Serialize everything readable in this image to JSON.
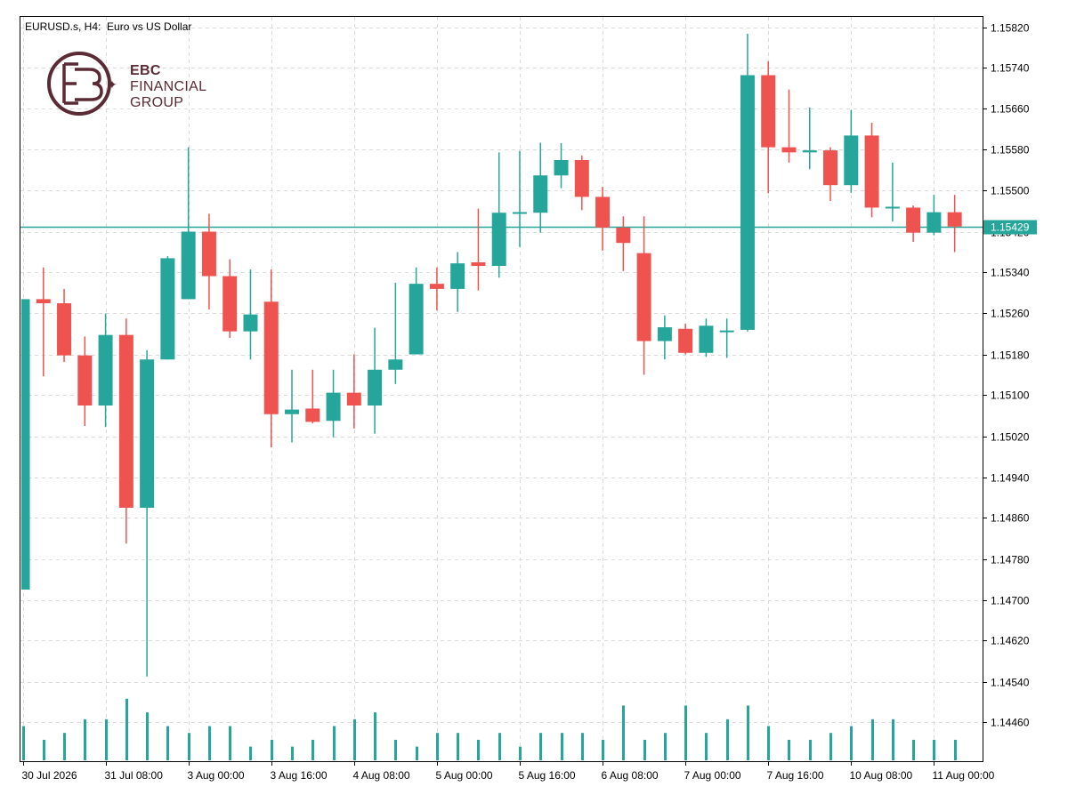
{
  "header": {
    "symbol_line": "EURUSD.s, H4:  Euro vs US Dollar"
  },
  "logo": {
    "line1": "EBC",
    "line2": "FINANCIAL",
    "line3": "GROUP",
    "color": "#5a2a35"
  },
  "colors": {
    "bull": "#26a69a",
    "bear": "#ef5350",
    "grid": "#d9d9d9",
    "axis": "#000000",
    "price_line": "#26a69a"
  },
  "chart_data": {
    "type": "candlestick",
    "title": "EURUSD.s, H4:  Euro vs US Dollar",
    "timeframe": "H4",
    "ylim": [
      1.144,
      1.1584
    ],
    "grid": true,
    "current_price": "1.15429",
    "y_ticks": [
      "1.15820",
      "1.15740",
      "1.15660",
      "1.15580",
      "1.15500",
      "1.15420",
      "1.15340",
      "1.15260",
      "1.15180",
      "1.15100",
      "1.15020",
      "1.14940",
      "1.14860",
      "1.14780",
      "1.14700",
      "1.14620",
      "1.14540",
      "1.14460"
    ],
    "x_ticks": [
      {
        "index": 0,
        "label": "30 Jul 2026"
      },
      {
        "index": 4,
        "label": "31 Jul 08:00"
      },
      {
        "index": 8,
        "label": "3 Aug 00:00"
      },
      {
        "index": 12,
        "label": "3 Aug 16:00"
      },
      {
        "index": 16,
        "label": "4 Aug 08:00"
      },
      {
        "index": 20,
        "label": "5 Aug 00:00"
      },
      {
        "index": 24,
        "label": "5 Aug 16:00"
      },
      {
        "index": 28,
        "label": "6 Aug 08:00"
      },
      {
        "index": 32,
        "label": "7 Aug 00:00"
      },
      {
        "index": 36,
        "label": "7 Aug 16:00"
      },
      {
        "index": 40,
        "label": "10 Aug 08:00"
      },
      {
        "index": 44,
        "label": "11 Aug 00:00"
      }
    ],
    "candles": [
      {
        "o": 1.1472,
        "h": 1.15288,
        "l": 1.1472,
        "c": 1.15288
      },
      {
        "o": 1.15288,
        "h": 1.1535,
        "l": 1.15137,
        "c": 1.1528
      },
      {
        "o": 1.1528,
        "h": 1.15308,
        "l": 1.15165,
        "c": 1.15178
      },
      {
        "o": 1.15178,
        "h": 1.15215,
        "l": 1.1504,
        "c": 1.1508
      },
      {
        "o": 1.1508,
        "h": 1.1526,
        "l": 1.15038,
        "c": 1.15218
      },
      {
        "o": 1.15218,
        "h": 1.1525,
        "l": 1.1481,
        "c": 1.1488
      },
      {
        "o": 1.1488,
        "h": 1.15188,
        "l": 1.1455,
        "c": 1.1517
      },
      {
        "o": 1.1517,
        "h": 1.15372,
        "l": 1.1517,
        "c": 1.15368
      },
      {
        "o": 1.15288,
        "h": 1.15585,
        "l": 1.15288,
        "c": 1.1542
      },
      {
        "o": 1.1542,
        "h": 1.15455,
        "l": 1.15268,
        "c": 1.15333
      },
      {
        "o": 1.15333,
        "h": 1.15366,
        "l": 1.15212,
        "c": 1.15225
      },
      {
        "o": 1.15225,
        "h": 1.15346,
        "l": 1.1517,
        "c": 1.15258
      },
      {
        "o": 1.15283,
        "h": 1.15346,
        "l": 1.14998,
        "c": 1.15063
      },
      {
        "o": 1.15063,
        "h": 1.1515,
        "l": 1.15008,
        "c": 1.15072
      },
      {
        "o": 1.15074,
        "h": 1.1515,
        "l": 1.15045,
        "c": 1.15048
      },
      {
        "o": 1.1505,
        "h": 1.1515,
        "l": 1.15018,
        "c": 1.15105
      },
      {
        "o": 1.15105,
        "h": 1.1518,
        "l": 1.15035,
        "c": 1.1508
      },
      {
        "o": 1.1508,
        "h": 1.15232,
        "l": 1.15025,
        "c": 1.1515
      },
      {
        "o": 1.1515,
        "h": 1.1532,
        "l": 1.15122,
        "c": 1.1517
      },
      {
        "o": 1.1518,
        "h": 1.1535,
        "l": 1.1518,
        "c": 1.15318
      },
      {
        "o": 1.15318,
        "h": 1.1535,
        "l": 1.15266,
        "c": 1.15308
      },
      {
        "o": 1.15308,
        "h": 1.1538,
        "l": 1.15263,
        "c": 1.15358
      },
      {
        "o": 1.1536,
        "h": 1.15465,
        "l": 1.15305,
        "c": 1.15353
      },
      {
        "o": 1.15353,
        "h": 1.15575,
        "l": 1.1533,
        "c": 1.15457
      },
      {
        "o": 1.15455,
        "h": 1.15578,
        "l": 1.1539,
        "c": 1.15458
      },
      {
        "o": 1.15457,
        "h": 1.15594,
        "l": 1.15418,
        "c": 1.1553
      },
      {
        "o": 1.1553,
        "h": 1.15593,
        "l": 1.15505,
        "c": 1.1556
      },
      {
        "o": 1.1556,
        "h": 1.15569,
        "l": 1.15462,
        "c": 1.15488
      },
      {
        "o": 1.15488,
        "h": 1.15508,
        "l": 1.15383,
        "c": 1.15428
      },
      {
        "o": 1.15428,
        "h": 1.1545,
        "l": 1.15343,
        "c": 1.15398
      },
      {
        "o": 1.15378,
        "h": 1.1545,
        "l": 1.1514,
        "c": 1.15206
      },
      {
        "o": 1.15206,
        "h": 1.15256,
        "l": 1.1517,
        "c": 1.15233
      },
      {
        "o": 1.1523,
        "h": 1.1524,
        "l": 1.1518,
        "c": 1.15183
      },
      {
        "o": 1.15183,
        "h": 1.1525,
        "l": 1.15175,
        "c": 1.15236
      },
      {
        "o": 1.15225,
        "h": 1.1525,
        "l": 1.15173,
        "c": 1.15225
      },
      {
        "o": 1.15228,
        "h": 1.15807,
        "l": 1.15225,
        "c": 1.15726
      },
      {
        "o": 1.15726,
        "h": 1.15753,
        "l": 1.15495,
        "c": 1.15585
      },
      {
        "o": 1.15585,
        "h": 1.15698,
        "l": 1.15555,
        "c": 1.15575
      },
      {
        "o": 1.15575,
        "h": 1.15663,
        "l": 1.15542,
        "c": 1.15579
      },
      {
        "o": 1.15579,
        "h": 1.15585,
        "l": 1.1548,
        "c": 1.15511
      },
      {
        "o": 1.15511,
        "h": 1.15658,
        "l": 1.15496,
        "c": 1.15608
      },
      {
        "o": 1.15608,
        "h": 1.15633,
        "l": 1.15448,
        "c": 1.15467
      },
      {
        "o": 1.15467,
        "h": 1.15555,
        "l": 1.1544,
        "c": 1.15467
      },
      {
        "o": 1.15467,
        "h": 1.15471,
        "l": 1.154,
        "c": 1.15418
      },
      {
        "o": 1.15418,
        "h": 1.15492,
        "l": 1.15413,
        "c": 1.15458
      },
      {
        "o": 1.15458,
        "h": 1.15492,
        "l": 1.1538,
        "c": 1.1543
      }
    ],
    "volumes": [
      5,
      3,
      4,
      6,
      6,
      9,
      7,
      5,
      4,
      5,
      5,
      2,
      3,
      2,
      3,
      5,
      6,
      7,
      3,
      2,
      4,
      4,
      3,
      4,
      2,
      4,
      4,
      4,
      3,
      8,
      3,
      4,
      8,
      4,
      6,
      8,
      5,
      3,
      3,
      4,
      5,
      6,
      6,
      3,
      3,
      3
    ]
  }
}
